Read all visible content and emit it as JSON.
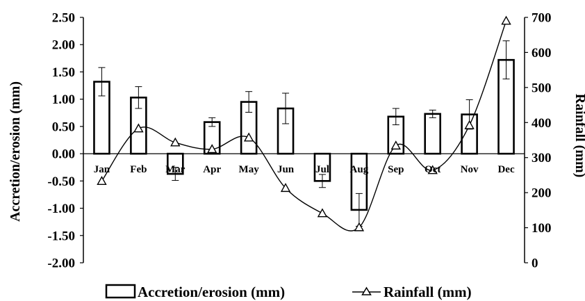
{
  "chart_data": {
    "type": "bar",
    "categories": [
      "Jan",
      "Feb",
      "Mar",
      "Apr",
      "May",
      "Jun",
      "Jul",
      "Aug",
      "Sep",
      "Oct",
      "Nov",
      "Dec"
    ],
    "category_labels": [
      "Jan",
      "Feb",
      "Mar",
      "Apr",
      "May",
      "Jun",
      "Jul",
      "Aug",
      "Sep",
      "Oct",
      "Nov",
      "Dec"
    ],
    "series": [
      {
        "name": "Accretion/erosion (mm)",
        "type": "bar",
        "axis": "left",
        "values": [
          1.32,
          1.03,
          -0.37,
          0.58,
          0.95,
          0.83,
          -0.5,
          -1.03,
          0.68,
          0.73,
          0.72,
          1.72
        ],
        "error": [
          0.26,
          0.2,
          0.12,
          0.08,
          0.19,
          0.28,
          0.12,
          0.3,
          0.15,
          0.07,
          0.27,
          0.35
        ],
        "color": "#ffffff",
        "edge_color": "#000000"
      },
      {
        "name": "Rainfall (mm)",
        "type": "line",
        "axis": "right",
        "marker": "triangle-open",
        "values": [
          233,
          383,
          343,
          324,
          357,
          213,
          141,
          101,
          334,
          264,
          392,
          690
        ],
        "color": "#000000"
      }
    ],
    "ylabel": "Accretion/erosion (mm)",
    "ylabel_right": "Rainfall (mm)",
    "ylim": [
      -2.0,
      2.5
    ],
    "ylim_right": [
      0,
      700
    ],
    "yticks": [
      "2.50",
      "2.00",
      "1.50",
      "1.00",
      "0.50",
      "0.00",
      "-0.50",
      "-1.00",
      "-1.50",
      "-2.00"
    ],
    "yticks_right": [
      "700",
      "600",
      "500",
      "400",
      "300",
      "200",
      "100",
      "0"
    ],
    "legend": [
      {
        "label": "Accretion/erosion (mm)",
        "symbol": "bar"
      },
      {
        "label": "Rainfall (mm)",
        "symbol": "line-triangle"
      }
    ],
    "legend_position": "bottom",
    "grid": false
  }
}
